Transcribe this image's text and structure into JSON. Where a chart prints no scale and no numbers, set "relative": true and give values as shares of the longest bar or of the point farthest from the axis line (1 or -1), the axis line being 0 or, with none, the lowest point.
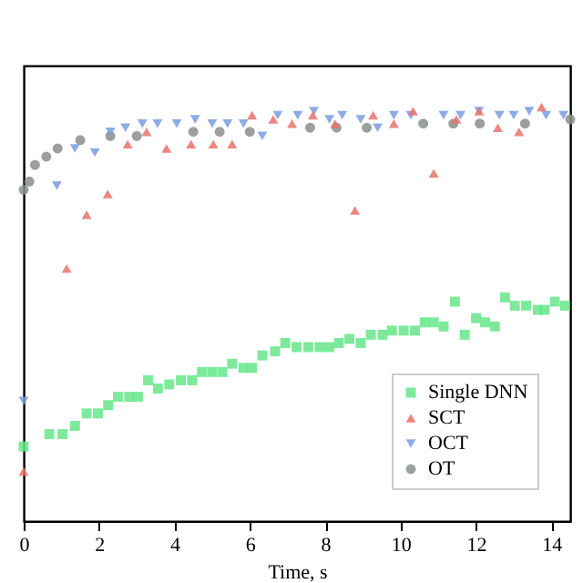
{
  "chart_data": {
    "type": "scatter",
    "xlabel": "Time, s",
    "relative": true,
    "xlim": [
      0,
      14.5
    ],
    "xticks": [
      0,
      2,
      4,
      6,
      8,
      10,
      12,
      14
    ],
    "grid": false,
    "legend": "bottom right",
    "series": [
      {
        "name": "Single DNN",
        "color": "#66e68a",
        "marker": "square",
        "x": [
          0,
          0.68,
          1.03,
          1.36,
          1.67,
          1.97,
          2.24,
          2.5,
          2.8,
          3.03,
          3.3,
          3.56,
          3.86,
          4.17,
          4.47,
          4.73,
          5.0,
          5.27,
          5.53,
          5.83,
          6.06,
          6.33,
          6.67,
          6.94,
          7.24,
          7.55,
          7.85,
          8.11,
          8.36,
          8.64,
          8.94,
          9.21,
          9.52,
          9.77,
          10.08,
          10.38,
          10.64,
          10.88,
          11.14,
          11.44,
          11.7,
          12.0,
          12.24,
          12.5,
          12.77,
          13.03,
          13.33,
          13.64,
          13.82,
          14.09,
          14.36
        ],
        "values": [
          0.18,
          0.21,
          0.21,
          0.23,
          0.26,
          0.26,
          0.28,
          0.3,
          0.3,
          0.3,
          0.34,
          0.32,
          0.33,
          0.34,
          0.34,
          0.36,
          0.36,
          0.36,
          0.38,
          0.37,
          0.37,
          0.4,
          0.41,
          0.43,
          0.42,
          0.42,
          0.42,
          0.42,
          0.43,
          0.44,
          0.43,
          0.45,
          0.45,
          0.46,
          0.46,
          0.46,
          0.48,
          0.48,
          0.47,
          0.53,
          0.45,
          0.49,
          0.48,
          0.47,
          0.54,
          0.52,
          0.52,
          0.51,
          0.51,
          0.53,
          0.52
        ]
      },
      {
        "name": "SCT",
        "color": "#e8736c",
        "marker": "triangle",
        "x": [
          0,
          1.14,
          1.67,
          2.23,
          2.76,
          3.26,
          3.79,
          4.44,
          5.03,
          5.53,
          6.06,
          6.62,
          7.12,
          7.67,
          8.26,
          8.79,
          9.27,
          9.82,
          10.33,
          10.88,
          11.48,
          12.08,
          12.58,
          13.14,
          13.74
        ],
        "values": [
          0.12,
          0.61,
          0.74,
          0.79,
          0.91,
          0.94,
          0.9,
          0.91,
          0.91,
          0.91,
          0.98,
          0.97,
          0.96,
          0.98,
          0.96,
          0.75,
          0.98,
          0.96,
          0.99,
          0.84,
          0.97,
          0.99,
          0.95,
          0.94,
          1.0
        ]
      },
      {
        "name": "OCT",
        "color": "#7b9ce0",
        "marker": "triangle-down",
        "x": [
          0,
          0.88,
          1.36,
          1.89,
          2.3,
          2.7,
          3.15,
          3.55,
          4.06,
          4.55,
          5.0,
          5.41,
          5.83,
          6.33,
          6.74,
          7.27,
          7.7,
          8.11,
          8.45,
          8.94,
          9.39,
          9.82,
          10.27,
          11.14,
          11.59,
          12.08,
          12.62,
          13.0,
          13.41,
          13.86,
          14.32
        ],
        "values": [
          0.29,
          0.81,
          0.9,
          0.89,
          0.94,
          0.95,
          0.96,
          0.96,
          0.96,
          0.97,
          0.96,
          0.96,
          0.96,
          0.93,
          0.98,
          0.98,
          0.99,
          0.97,
          0.98,
          0.97,
          0.95,
          0.98,
          0.98,
          0.98,
          0.98,
          0.99,
          0.98,
          0.98,
          0.99,
          0.98,
          0.98
        ]
      },
      {
        "name": "OT",
        "color": "#8a8f8c",
        "marker": "circle",
        "x": [
          0,
          0.15,
          0.3,
          0.6,
          0.9,
          1.5,
          2.3,
          3.0,
          4.5,
          5.2,
          6.0,
          7.6,
          8.3,
          9.1,
          10.6,
          11.4,
          12.1,
          13.3,
          14.5
        ],
        "values": [
          0.8,
          0.82,
          0.86,
          0.88,
          0.9,
          0.92,
          0.93,
          0.93,
          0.94,
          0.94,
          0.94,
          0.95,
          0.95,
          0.95,
          0.96,
          0.96,
          0.96,
          0.96,
          0.97
        ]
      }
    ]
  }
}
